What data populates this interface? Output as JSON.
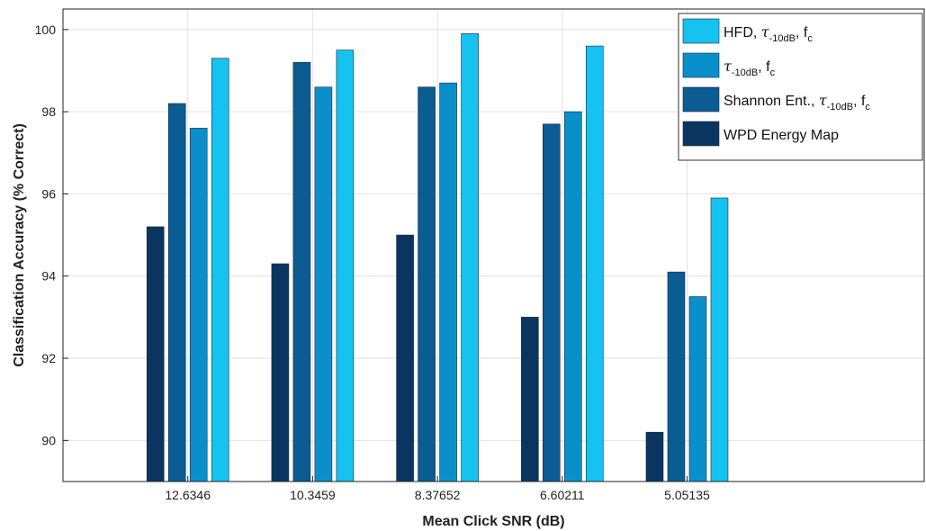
{
  "chart_data": {
    "type": "bar",
    "title": "",
    "xlabel": "Mean Click SNR (dB)",
    "ylabel": "Classification Accuracy (% Correct)",
    "categories": [
      "12.6346",
      "10.3459",
      "8.37652",
      "6.60211",
      "5.05135"
    ],
    "ylim": [
      89,
      100.5
    ],
    "yticks": [
      90,
      92,
      94,
      96,
      98,
      100
    ],
    "grid": true,
    "legend_position": "top-right",
    "series": [
      {
        "name": "WPD Energy Map",
        "color": "#0b3561",
        "values": [
          95.2,
          94.3,
          95.0,
          93.0,
          90.2
        ]
      },
      {
        "name": "Shannon Ent., τ-10dB, fc",
        "color": "#0a5c92",
        "values": [
          98.2,
          99.2,
          98.6,
          97.7,
          94.1
        ]
      },
      {
        "name": "τ-10dB, fc",
        "color": "#0b8fcb",
        "values": [
          97.6,
          98.6,
          98.7,
          98.0,
          93.5
        ]
      },
      {
        "name": "HFD, τ-10dB, fc",
        "color": "#15c2f0",
        "values": [
          99.3,
          99.5,
          99.9,
          99.6,
          95.9
        ]
      }
    ],
    "legend": [
      {
        "main": "HFD, ",
        "greek": "τ",
        "sub1": "-10dB",
        "mid": ", f",
        "sub2": "c"
      },
      {
        "main": "",
        "greek": "τ",
        "sub1": "-10dB",
        "mid": ", f",
        "sub2": "c"
      },
      {
        "main": "Shannon Ent., ",
        "greek": "τ",
        "sub1": "-10dB",
        "mid": ", f",
        "sub2": "c"
      },
      {
        "main": "WPD Energy Map",
        "greek": "",
        "sub1": "",
        "mid": "",
        "sub2": ""
      }
    ]
  }
}
